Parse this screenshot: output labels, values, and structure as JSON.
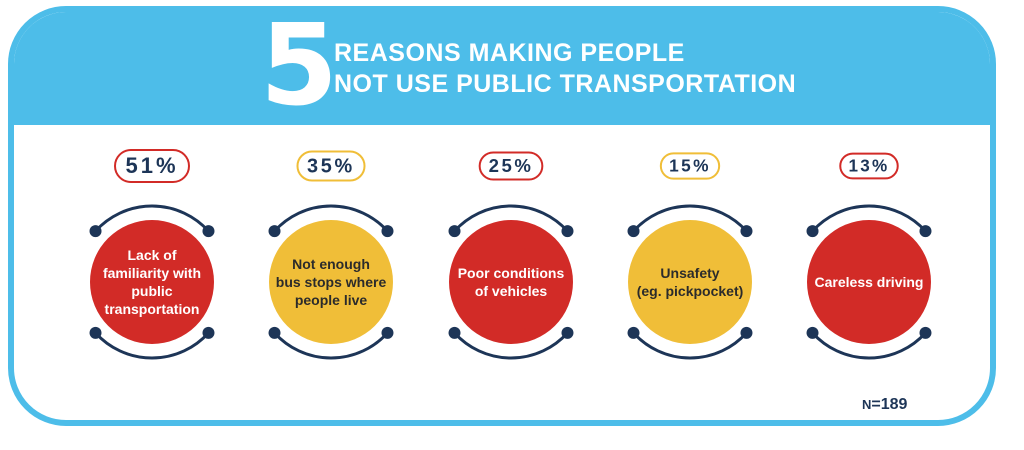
{
  "header": {
    "big_number": "5",
    "line1": "REASONS MAKING PEOPLE",
    "line2": "NOT USE PUBLIC TRANSPORTATION"
  },
  "colors": {
    "brand_blue": "#4dbde9",
    "red": "#d22b27",
    "yellow": "#f0be38",
    "navy": "#1d3557"
  },
  "chart_data": {
    "type": "bar",
    "categories": [
      [
        "Lack of",
        "familiarity with",
        "public",
        "transportation"
      ],
      [
        "Not enough",
        "bus stops where",
        "people live"
      ],
      [
        "Poor conditions",
        "of vehicles"
      ],
      [
        "Unsafety",
        "(eg. pickpocket)"
      ],
      [
        "Careless driving"
      ]
    ],
    "values": [
      51,
      35,
      25,
      15,
      13
    ],
    "value_labels": [
      "51%",
      "35%",
      "25%",
      "15%",
      "13%"
    ],
    "fills": [
      "red",
      "yellow",
      "red",
      "yellow",
      "red"
    ],
    "title": "5 REASONS MAKING PEOPLE NOT USE PUBLIC TRANSPORTATION"
  },
  "footer": {
    "sample_size": "=189",
    "sample_prefix": "N"
  }
}
